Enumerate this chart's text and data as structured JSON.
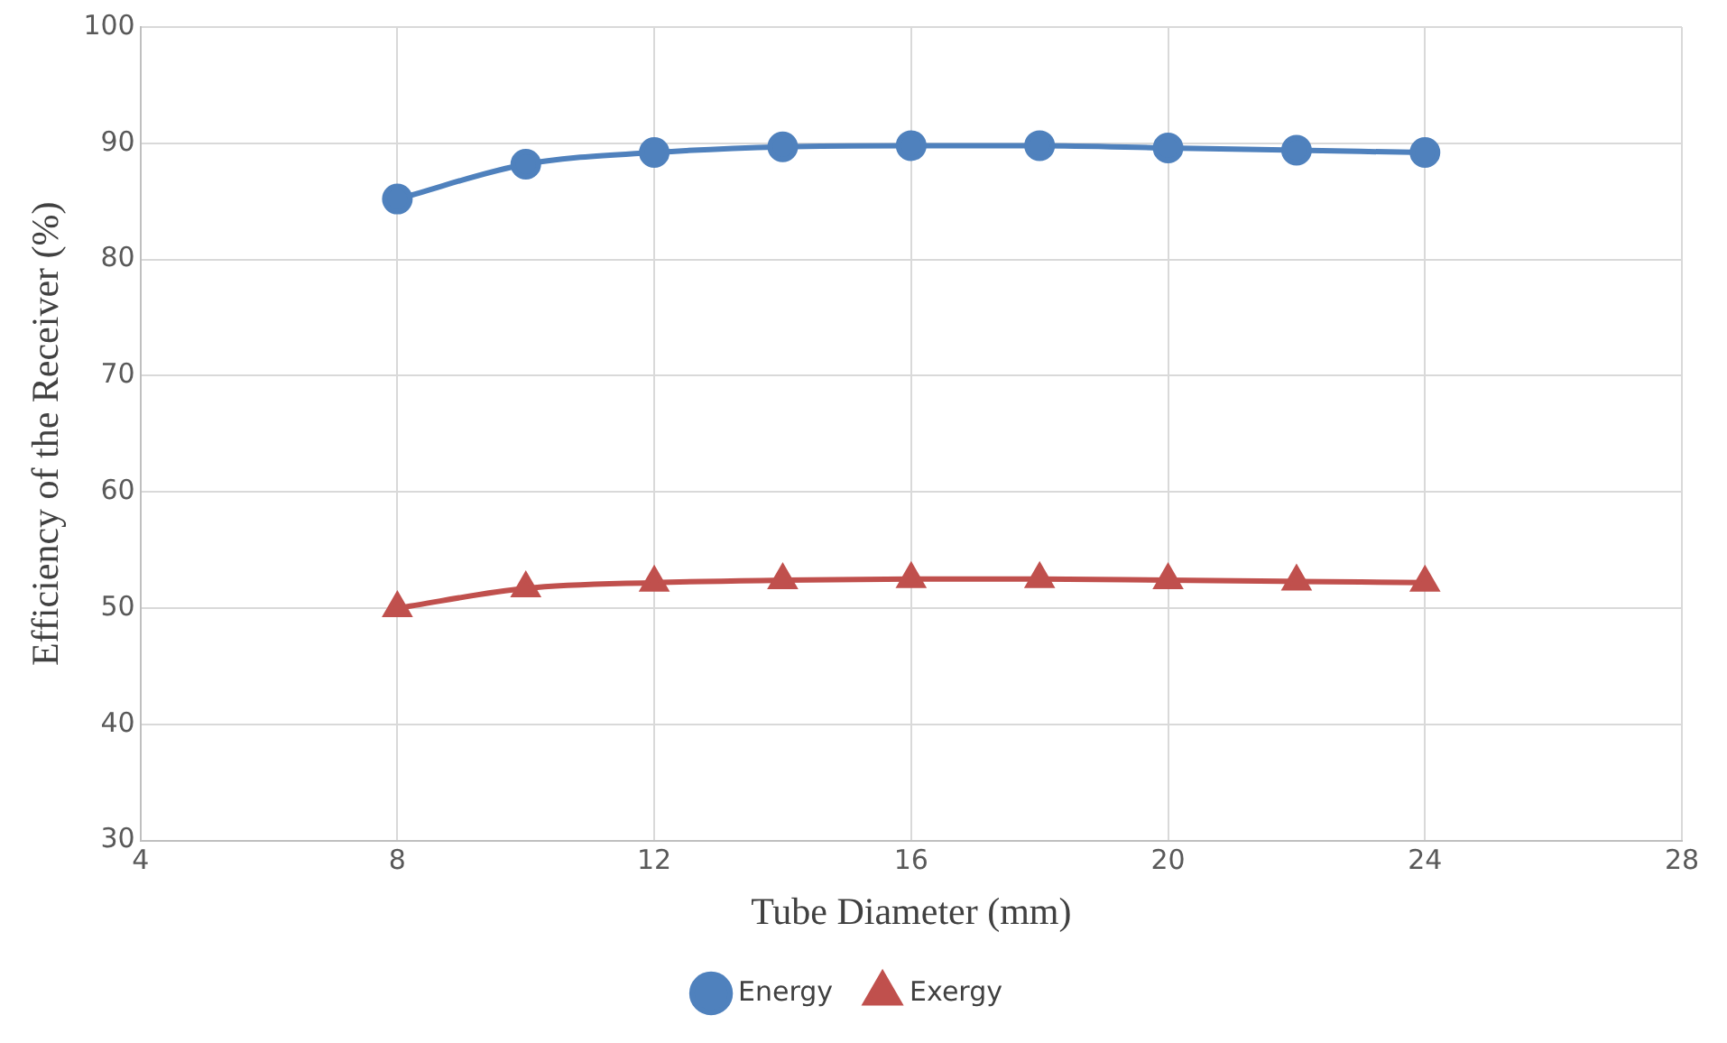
{
  "chart_data": {
    "type": "line",
    "xlabel": "Tube Diameter (mm)",
    "ylabel": "Efficiency of the Receiver (%)",
    "x": [
      8,
      10,
      12,
      14,
      16,
      18,
      20,
      22,
      24
    ],
    "series": [
      {
        "name": "Energy",
        "color": "#4f81bd",
        "marker": "circle",
        "values": [
          85.2,
          88.2,
          89.2,
          89.7,
          89.8,
          89.8,
          89.6,
          89.4,
          89.2
        ]
      },
      {
        "name": "Exergy",
        "color": "#c0504d",
        "marker": "triangle",
        "values": [
          50.0,
          51.7,
          52.2,
          52.4,
          52.5,
          52.5,
          52.4,
          52.3,
          52.2
        ]
      }
    ],
    "xlim": [
      4,
      28
    ],
    "xticks": [
      4,
      8,
      12,
      16,
      20,
      24,
      28
    ],
    "ylim": [
      30,
      100
    ],
    "yticks": [
      30,
      40,
      50,
      60,
      70,
      80,
      90,
      100
    ],
    "grid": true,
    "legend": "bottom"
  }
}
